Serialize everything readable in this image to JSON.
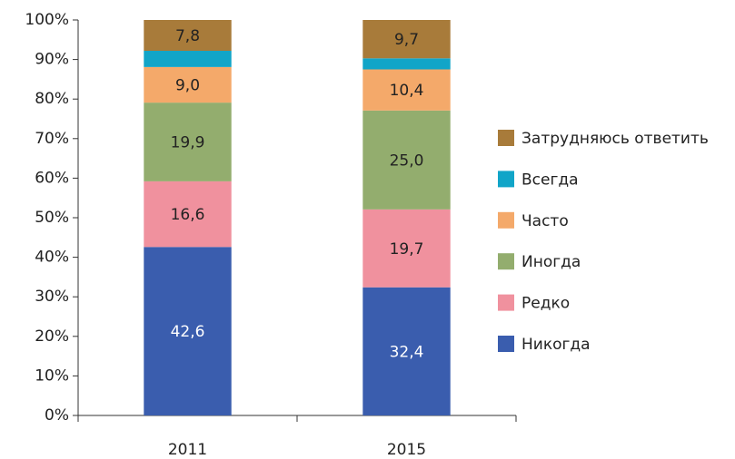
{
  "chart_data": {
    "type": "stacked_bar",
    "categories": [
      "2011",
      "2015"
    ],
    "series": [
      {
        "name": "Никогда",
        "color": "#3a5dae",
        "values": [
          42.6,
          32.4
        ],
        "value_labels": [
          "42,6",
          "32,4"
        ]
      },
      {
        "name": "Редко",
        "color": "#f0919e",
        "values": [
          16.6,
          19.7
        ],
        "value_labels": [
          "16,6",
          "19,7"
        ]
      },
      {
        "name": "Иногда",
        "color": "#93ad6e",
        "values": [
          19.9,
          25.0
        ],
        "value_labels": [
          "19,9",
          "25,0"
        ]
      },
      {
        "name": "Часто",
        "color": "#f4a96a",
        "values": [
          9.0,
          10.4
        ],
        "value_labels": [
          "9,0",
          "10,4"
        ]
      },
      {
        "name": "Всегда",
        "color": "#11a5c8",
        "values": [
          4.1,
          2.8
        ]
      },
      {
        "name": "Затрудняюсь ответить",
        "color": "#a87b3a",
        "values": [
          7.8,
          9.7
        ],
        "value_labels": [
          "7,8",
          "9,7"
        ]
      }
    ],
    "ylim": [
      0,
      100
    ],
    "yticks": [
      {
        "value": 0,
        "label": "0%"
      },
      {
        "value": 10,
        "label": "10%"
      },
      {
        "value": 20,
        "label": "20%"
      },
      {
        "value": 30,
        "label": "30%"
      },
      {
        "value": 40,
        "label": "40%"
      },
      {
        "value": 50,
        "label": "50%"
      },
      {
        "value": 60,
        "label": "60%"
      },
      {
        "value": 70,
        "label": "70%"
      },
      {
        "value": 80,
        "label": "80%"
      },
      {
        "value": 90,
        "label": "90%"
      },
      {
        "value": 100,
        "label": "100%"
      }
    ],
    "legend": "right"
  }
}
